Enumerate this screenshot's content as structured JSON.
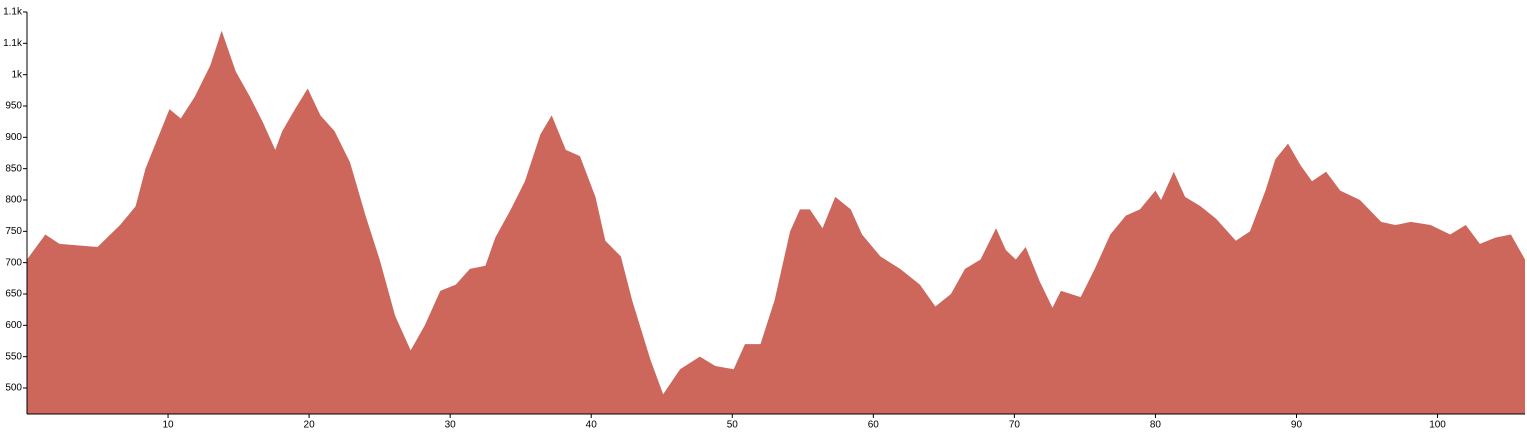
{
  "chart_data": {
    "type": "area",
    "x": [
      0,
      1.3,
      2.3,
      5.0,
      6.6,
      7.7,
      8.4,
      10.1,
      10.9,
      11.9,
      13.0,
      13.8,
      14.8,
      15.8,
      16.7,
      17.6,
      18.1,
      19.0,
      19.9,
      20.8,
      21.8,
      22.9,
      24.0,
      25.0,
      26.1,
      27.2,
      28.2,
      29.3,
      30.4,
      31.4,
      32.5,
      33.2,
      34.3,
      35.3,
      36.4,
      37.2,
      38.2,
      39.2,
      40.3,
      41.0,
      42.1,
      42.9,
      44.2,
      45.1,
      46.3,
      47.7,
      48.8,
      50.1,
      50.9,
      52.0,
      53.0,
      54.1,
      54.8,
      55.5,
      56.4,
      57.3,
      58.4,
      59.2,
      60.5,
      61.9,
      63.3,
      64.4,
      65.5,
      66.5,
      67.6,
      68.7,
      69.4,
      70.1,
      70.8,
      71.8,
      72.7,
      73.3,
      74.7,
      75.7,
      76.8,
      77.9,
      78.9,
      80.0,
      80.4,
      81.3,
      82.1,
      83.2,
      84.3,
      85.7,
      86.7,
      87.8,
      88.5,
      89.4,
      90.3,
      91.1,
      92.1,
      93.1,
      94.5,
      96.0,
      97.0,
      98.1,
      99.5,
      100.9,
      102.0,
      103.0,
      104.1,
      105.2,
      106.2
    ],
    "values": [
      705,
      745,
      730,
      725,
      760,
      790,
      850,
      945,
      930,
      965,
      1015,
      1070,
      1005,
      965,
      925,
      880,
      910,
      945,
      978,
      935,
      910,
      860,
      775,
      705,
      615,
      560,
      600,
      655,
      665,
      690,
      695,
      740,
      785,
      830,
      905,
      935,
      880,
      870,
      805,
      735,
      710,
      640,
      545,
      490,
      530,
      550,
      535,
      530,
      570,
      570,
      640,
      750,
      785,
      785,
      755,
      805,
      785,
      745,
      710,
      690,
      665,
      630,
      650,
      690,
      705,
      755,
      720,
      705,
      725,
      670,
      628,
      655,
      645,
      690,
      745,
      775,
      785,
      815,
      800,
      845,
      805,
      790,
      770,
      735,
      750,
      815,
      865,
      890,
      855,
      830,
      845,
      815,
      800,
      765,
      760,
      765,
      760,
      745,
      760,
      730,
      740,
      745,
      705
    ],
    "color": "#cd665b",
    "xlim": [
      0,
      106.2
    ],
    "xticks": [
      10,
      20,
      30,
      40,
      50,
      60,
      70,
      80,
      90,
      100
    ],
    "ylim": [
      458.5,
      1100
    ],
    "yticks": [
      500,
      550,
      600,
      650,
      700,
      750,
      800,
      850,
      900,
      950,
      {
        "value": 1000,
        "label": "1k"
      },
      {
        "value": 1050,
        "label": "1.1k"
      },
      {
        "value": 1100,
        "label": "1.1k"
      }
    ]
  }
}
